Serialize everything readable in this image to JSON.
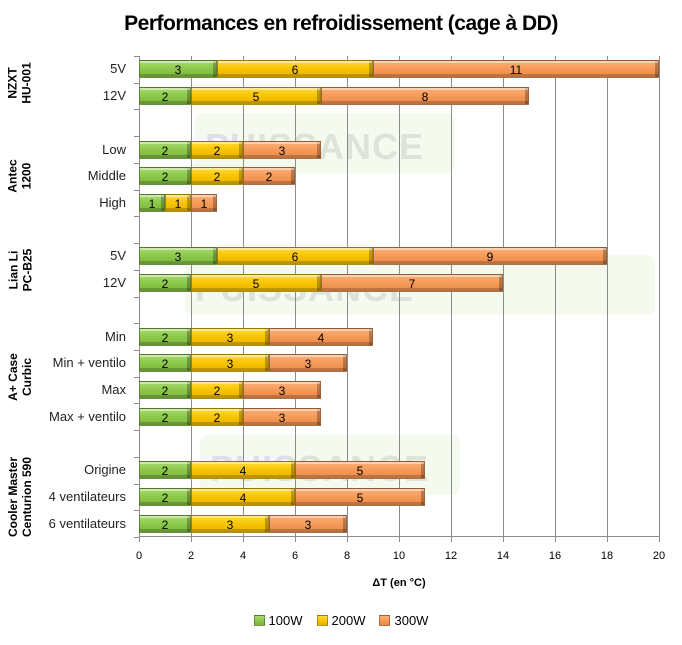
{
  "chart_data": {
    "type": "bar",
    "orientation": "horizontal",
    "stacked": true,
    "title": "Performances en refroidissement (cage à DD)",
    "xlabel": "ΔT (en °C)",
    "ylabel": "",
    "xlim": [
      0,
      20
    ],
    "xticks": [
      0,
      2,
      4,
      6,
      8,
      10,
      12,
      14,
      16,
      18,
      20
    ],
    "grid": true,
    "legend_position": "bottom",
    "series": [
      {
        "name": "100W",
        "color": "#8cc84b"
      },
      {
        "name": "200W",
        "color": "#f8c400"
      },
      {
        "name": "300W",
        "color": "#f69a57"
      }
    ],
    "groups": [
      {
        "name": "NZXT HU-001",
        "lines": [
          "NZXT",
          "HU-001"
        ],
        "categories": [
          {
            "label": "5V",
            "values": [
              3,
              6,
              11
            ]
          },
          {
            "label": "12V",
            "values": [
              2,
              5,
              8
            ]
          }
        ]
      },
      {
        "name": "Antec 1200",
        "lines": [
          "Antec",
          "1200"
        ],
        "categories": [
          {
            "label": "Low",
            "values": [
              2,
              2,
              3
            ]
          },
          {
            "label": "Middle",
            "values": [
              2,
              2,
              2
            ]
          },
          {
            "label": "High",
            "values": [
              1,
              1,
              1
            ]
          }
        ]
      },
      {
        "name": "Lian Li PC-B25",
        "lines": [
          "Lian Li",
          "PC-B25"
        ],
        "categories": [
          {
            "label": "5V",
            "values": [
              3,
              6,
              9
            ]
          },
          {
            "label": "12V",
            "values": [
              2,
              5,
              7
            ]
          }
        ]
      },
      {
        "name": "A+ Case Curbic",
        "lines": [
          "A+ Case",
          "Curbic"
        ],
        "categories": [
          {
            "label": "Min",
            "values": [
              2,
              3,
              4
            ]
          },
          {
            "label": "Min + ventilo",
            "values": [
              2,
              3,
              3
            ]
          },
          {
            "label": "Max",
            "values": [
              2,
              2,
              3
            ]
          },
          {
            "label": "Max + ventilo",
            "values": [
              2,
              2,
              3
            ]
          }
        ]
      },
      {
        "name": "Cooler Master Centurion 590",
        "lines": [
          "Cooler Master",
          "Centurion 590"
        ],
        "categories": [
          {
            "label": "Origine",
            "values": [
              2,
              4,
              5
            ]
          },
          {
            "label": "4 ventilateurs",
            "values": [
              2,
              4,
              5
            ]
          },
          {
            "label": "6 ventilateurs",
            "values": [
              2,
              3,
              3
            ]
          }
        ]
      }
    ]
  },
  "watermark": {
    "text": "PUISSANCE",
    "suffix": "PC"
  }
}
